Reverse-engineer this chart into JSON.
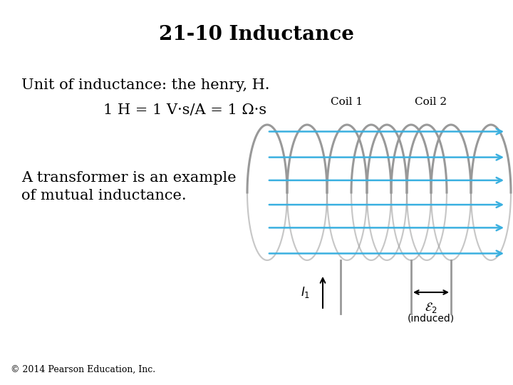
{
  "title": "21-10 Inductance",
  "title_fontsize": 20,
  "title_fontweight": "bold",
  "bg_color": "#ffffff",
  "line1": "Unit of inductance: the henry, H.",
  "line1_fontsize": 15,
  "line2": "1 H = 1 V·s/A = 1 Ω·s",
  "line2_fontsize": 15,
  "line3a": "A transformer is an example",
  "line3b": "of mutual inductance.",
  "line3_fontsize": 15,
  "footer": "© 2014 Pearson Education, Inc.",
  "footer_fontsize": 9,
  "coil_color": "#999999",
  "arrow_color": "#3ab0e0",
  "text_color": "#000000",
  "coil1_label": "Coil 1",
  "coil2_label": "Coil 2",
  "n_turns_1": 5,
  "n_turns_2": 4
}
